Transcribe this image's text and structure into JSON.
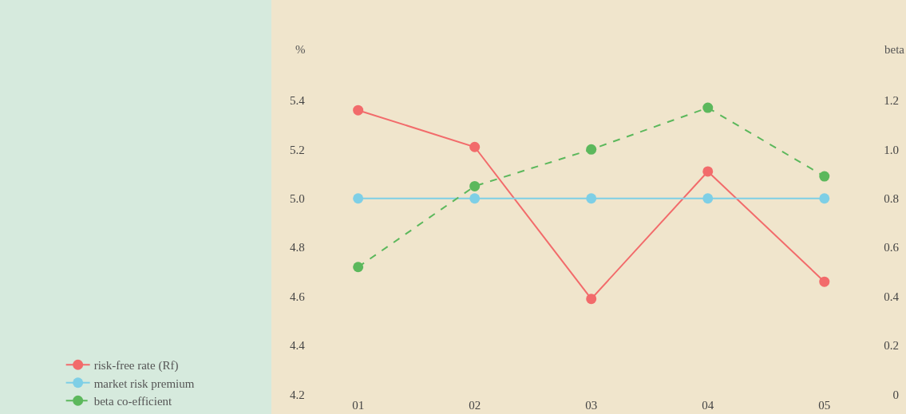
{
  "chart_data": {
    "type": "line",
    "ylabel": "%",
    "y2label": "beta",
    "categories": [
      "01",
      "02",
      "03",
      "04",
      "05"
    ],
    "series": [
      {
        "name": "risk-free rate (Rf)",
        "color": "#f26b6b",
        "values": [
          5.36,
          5.21,
          4.59,
          5.11,
          4.66
        ]
      },
      {
        "name": "market risk premium",
        "color": "#7ecfe6",
        "values": [
          5.0,
          5.0,
          5.0,
          5.0,
          5.0
        ]
      },
      {
        "name": "beta co-efficient",
        "color": "#5cb85c",
        "values": [
          0.52,
          0.85,
          1.0,
          1.17,
          0.89
        ],
        "axis": "y2",
        "line_style": "dashed"
      }
    ],
    "ylim": [
      4.12,
      5.81
    ],
    "yticks": [
      4.2,
      4.4,
      4.6,
      4.8,
      {
        "value": 5,
        "label": "5.0"
      },
      5.2,
      5.4
    ],
    "y2lim": [
      -0.08,
      1.61
    ],
    "y2ticks": [
      0,
      0.2,
      0.4,
      0.6,
      0.8,
      {
        "value": 1,
        "label": "1.0"
      },
      1.2
    ],
    "marker": "circle",
    "grid": false,
    "legend": "left"
  }
}
